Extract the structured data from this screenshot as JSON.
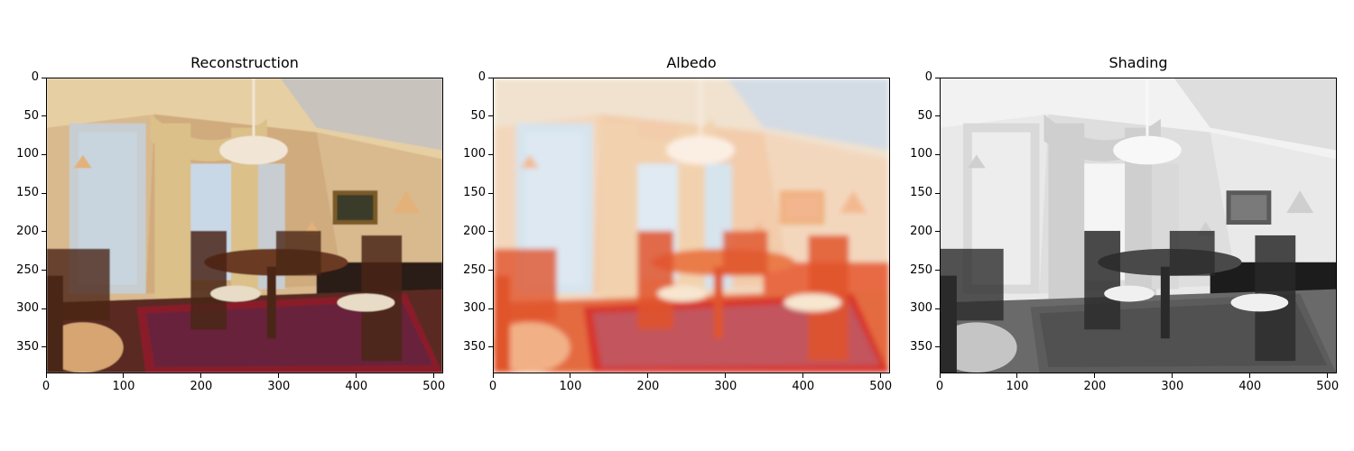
{
  "figure": {
    "panels": [
      {
        "title": "Reconstruction",
        "style": "color",
        "x_ticks": [
          "0",
          "100",
          "200",
          "300",
          "400",
          "500"
        ],
        "y_ticks": [
          "0",
          "50",
          "100",
          "150",
          "200",
          "250",
          "300",
          "350"
        ]
      },
      {
        "title": "Albedo",
        "style": "albedo",
        "x_ticks": [
          "0",
          "100",
          "200",
          "300",
          "400",
          "500"
        ],
        "y_ticks": [
          "0",
          "50",
          "100",
          "150",
          "200",
          "250",
          "300",
          "350"
        ]
      },
      {
        "title": "Shading",
        "style": "grayscale",
        "x_ticks": [
          "0",
          "100",
          "200",
          "300",
          "400",
          "500"
        ],
        "y_ticks": [
          "0",
          "50",
          "100",
          "150",
          "200",
          "250",
          "300",
          "350"
        ]
      }
    ],
    "image_width": 512,
    "image_height": 384
  }
}
